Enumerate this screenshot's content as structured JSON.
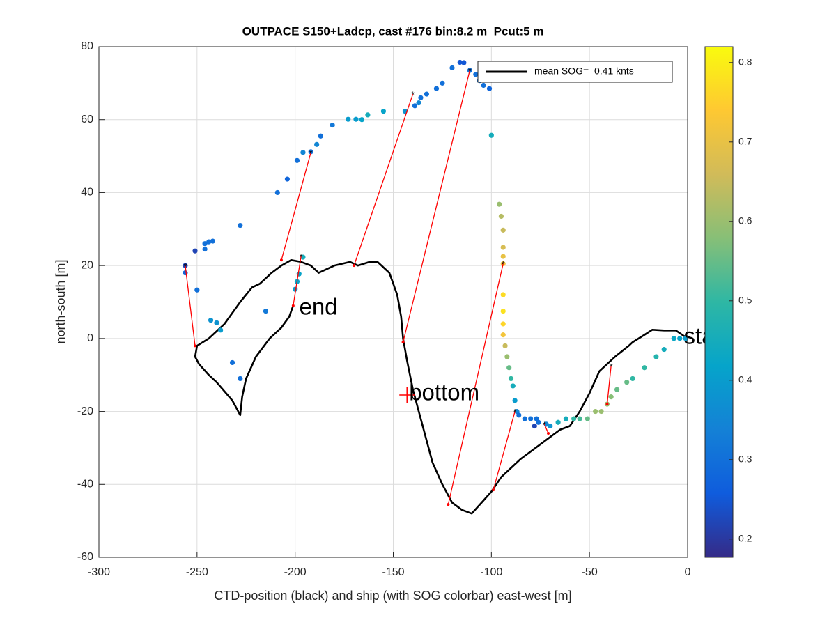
{
  "chart_data": {
    "type": "scatter",
    "title": "OUTPACE S150+Ladcp, cast #176 bin:8.2 m  Pcut:5 m",
    "xlabel": "CTD-position (black) and ship (with SOG colorbar) east-west [m]",
    "ylabel": "north-south [m]",
    "xlim": [
      -300,
      0
    ],
    "ylim": [
      -60,
      80
    ],
    "xticks": [
      -300,
      -250,
      -200,
      -150,
      -100,
      -50,
      0
    ],
    "yticks": [
      -60,
      -40,
      -20,
      0,
      20,
      40,
      60,
      80
    ],
    "grid": true,
    "legend": "top-right",
    "ctd": {
      "name": "mean SOG=  0.41 knts",
      "color": "#000000",
      "x": [
        0,
        -6,
        -12,
        -18,
        -22,
        -28,
        -30,
        -37,
        -45,
        -50,
        -55,
        -60,
        -65,
        -70,
        -75,
        -80,
        -85,
        -95,
        -100,
        -105,
        -110,
        -115,
        -120,
        -125,
        -130,
        -135,
        -140,
        -143,
        -145,
        -146,
        -148,
        -152,
        -158,
        -162,
        -168,
        -172,
        -180,
        -188,
        -192,
        -197,
        -202,
        -207,
        -212,
        -218,
        -222,
        -228,
        -236,
        -244,
        -250,
        -251,
        -249,
        -244,
        -240,
        -232,
        -228,
        -227,
        -225,
        -220,
        -213,
        -207,
        -203,
        -201
      ],
      "y": [
        0,
        2.2,
        2.2,
        2.4,
        1,
        -1,
        -2,
        -5,
        -9,
        -15,
        -20,
        -24,
        -25,
        -27,
        -29,
        -31,
        -33,
        -38,
        -42,
        -45,
        -48,
        -47,
        -45,
        -40,
        -34,
        -24,
        -14,
        -6,
        0,
        6,
        12,
        18,
        21,
        21,
        20,
        21,
        20,
        18,
        20,
        21,
        21.5,
        20,
        18,
        15,
        14,
        10,
        4,
        0,
        -2,
        -5,
        -7,
        -10,
        -12,
        -17,
        -21,
        -16,
        -11,
        -5,
        0,
        3,
        6,
        9
      ]
    },
    "ship": {
      "x": [
        -256,
        -256,
        -251,
        -250,
        -246,
        -246,
        -244,
        -242,
        -243,
        -240,
        -238,
        -232,
        -228,
        -228,
        -215,
        -209,
        -204,
        -199,
        -196,
        -192,
        -189,
        -187,
        -181,
        -173,
        -169,
        -166,
        -163,
        -155,
        -144,
        -139,
        -137,
        -136,
        -133,
        -128,
        -125,
        -120,
        -116,
        -114,
        -111,
        -108,
        -106,
        -104,
        -101,
        -100,
        -196,
        -198,
        -199,
        -200,
        -96,
        -95,
        -94,
        -94,
        -94,
        -94,
        -94,
        -94,
        -94,
        -94,
        -93,
        -92,
        -91,
        -90,
        -89,
        -88,
        -87,
        -86,
        -83,
        -80,
        -77,
        -78,
        -76,
        -72,
        -70,
        -66,
        -62,
        -58,
        -55,
        -51,
        -47,
        -44,
        -41,
        -39,
        -36,
        -31,
        -28,
        -22,
        -16,
        -12,
        -7,
        -4,
        -1
      ],
      "y": [
        20,
        18,
        24,
        13.3,
        24.5,
        26,
        26.5,
        26.7,
        5,
        4.3,
        2.3,
        -6.6,
        31,
        -11,
        7.5,
        40,
        43.7,
        48.8,
        51,
        51.2,
        53.2,
        55.5,
        58.5,
        60.1,
        60.1,
        60,
        61.3,
        62.3,
        62.3,
        63.8,
        64.6,
        66,
        67,
        68.5,
        70,
        74.2,
        75.7,
        75.6,
        73.5,
        72.4,
        70.7,
        69.4,
        68.5,
        55.7,
        22.3,
        17.7,
        15.6,
        13.5,
        36.8,
        33.5,
        29.7,
        25,
        22.5,
        20.5,
        12,
        7.5,
        4,
        1,
        -2,
        -5,
        -8,
        -11,
        -13,
        -17,
        -20,
        -21,
        -22,
        -22,
        -22,
        -24,
        -23,
        -23.5,
        -24,
        -23,
        -22,
        -22,
        -22,
        -22,
        -20,
        -20,
        -18,
        -16,
        -14,
        -12,
        -11,
        -8,
        -5,
        -3,
        0,
        0,
        0
      ],
      "sog": [
        0.22,
        0.28,
        0.22,
        0.3,
        0.3,
        0.3,
        0.3,
        0.3,
        0.38,
        0.38,
        0.4,
        0.3,
        0.3,
        0.3,
        0.32,
        0.3,
        0.28,
        0.3,
        0.35,
        0.3,
        0.35,
        0.3,
        0.32,
        0.4,
        0.4,
        0.42,
        0.45,
        0.42,
        0.38,
        0.3,
        0.35,
        0.3,
        0.3,
        0.3,
        0.3,
        0.3,
        0.25,
        0.25,
        0.3,
        0.3,
        0.3,
        0.3,
        0.28,
        0.45,
        0.45,
        0.42,
        0.42,
        0.4,
        0.6,
        0.63,
        0.65,
        0.67,
        0.7,
        0.72,
        0.77,
        0.78,
        0.76,
        0.72,
        0.65,
        0.6,
        0.55,
        0.5,
        0.45,
        0.4,
        0.35,
        0.3,
        0.3,
        0.3,
        0.3,
        0.22,
        0.3,
        0.35,
        0.38,
        0.45,
        0.45,
        0.5,
        0.52,
        0.55,
        0.6,
        0.6,
        0.6,
        0.58,
        0.55,
        0.55,
        0.5,
        0.5,
        0.48,
        0.45,
        0.43,
        0.42,
        0.4
      ]
    },
    "links": [
      {
        "x": [
          -251,
          -256
        ],
        "y": [
          -2,
          20
        ]
      },
      {
        "x": [
          -201,
          -197
        ],
        "y": [
          9,
          22.5
        ]
      },
      {
        "x": [
          -207,
          -192
        ],
        "y": [
          21.5,
          51
        ]
      },
      {
        "x": [
          -170,
          -140
        ],
        "y": [
          20,
          67
        ]
      },
      {
        "x": [
          -145,
          -111
        ],
        "y": [
          -1,
          73.5
        ]
      },
      {
        "x": [
          -122,
          -94
        ],
        "y": [
          -45.5,
          20.5
        ]
      },
      {
        "x": [
          -99,
          -88
        ],
        "y": [
          -41.5,
          -20
        ]
      },
      {
        "x": [
          -71,
          -73
        ],
        "y": [
          -26,
          -23.5
        ]
      },
      {
        "x": [
          -41,
          -39
        ],
        "y": [
          -18,
          -7.5
        ]
      }
    ],
    "link_color": "#ff0000",
    "annotations": [
      {
        "text": "start",
        "x": -3,
        "y": 0
      },
      {
        "text": "end",
        "x": -199,
        "y": 8
      },
      {
        "text": "bottom",
        "x": -143,
        "y": -15.5,
        "marker": "+"
      }
    ],
    "clim": [
      0.177,
      0.82
    ],
    "cticks": [
      0.2,
      0.3,
      0.4,
      0.5,
      0.6,
      0.7,
      0.8
    ],
    "colormap": [
      "#352a87",
      "#0f5cdd",
      "#1481d6",
      "#06a4ca",
      "#2eb7a4",
      "#87bf77",
      "#d1bb59",
      "#fec832",
      "#f9fb0e"
    ]
  }
}
